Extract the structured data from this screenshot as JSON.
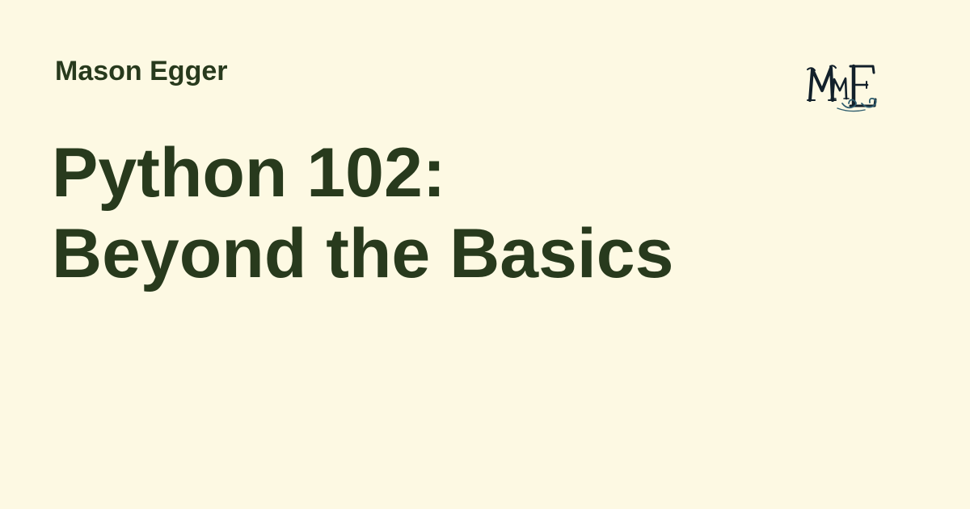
{
  "author": {
    "name": "Mason Egger"
  },
  "title": {
    "line1": "Python 102:",
    "line2": "Beyond the Basics"
  },
  "logo": {
    "monogram": "MME",
    "icon": "monogram-logo-icon"
  },
  "colors": {
    "background": "#fdf9e3",
    "text": "#283a1d",
    "logo_primary": "#12202a",
    "logo_accent": "#2f5d6e"
  }
}
